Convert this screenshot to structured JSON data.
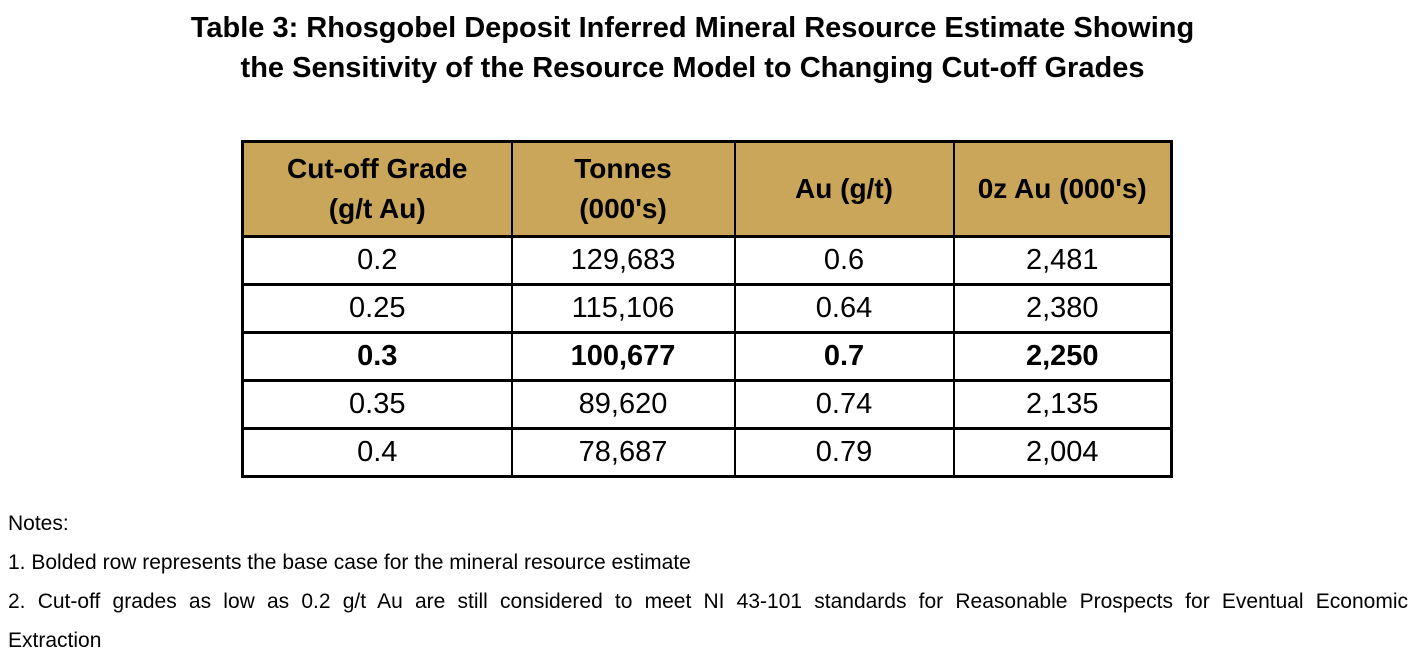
{
  "title": {
    "line1": "Table 3: Rhosgobel Deposit Inferred Mineral Resource Estimate Showing",
    "line2": "the Sensitivity of the Resource Model to Changing Cut-off Grades"
  },
  "table": {
    "header_bg": "#C9A65A",
    "border_color": "#000000",
    "headers": [
      {
        "line1": "Cut-off Grade",
        "line2": "(g/t Au)"
      },
      {
        "line1": "Tonnes",
        "line2": "(000's)"
      },
      {
        "line1": "Au (g/t)",
        "line2": ""
      },
      {
        "line1": "0z Au (000's)",
        "line2": ""
      }
    ],
    "rows": [
      {
        "cutoff": "0.2",
        "tonnes": "129,683",
        "au": "0.6",
        "oz": "2,481",
        "bold": false
      },
      {
        "cutoff": "0.25",
        "tonnes": "115,106",
        "au": "0.64",
        "oz": "2,380",
        "bold": false
      },
      {
        "cutoff": "0.3",
        "tonnes": "100,677",
        "au": "0.7",
        "oz": "2,250",
        "bold": true
      },
      {
        "cutoff": "0.35",
        "tonnes": "89,620",
        "au": "0.74",
        "oz": "2,135",
        "bold": false
      },
      {
        "cutoff": "0.4",
        "tonnes": "78,687",
        "au": "0.79",
        "oz": "2,004",
        "bold": false
      }
    ]
  },
  "notes": {
    "heading": "Notes:",
    "note1": "1. Bolded row represents the base case for the mineral resource estimate",
    "note2_line1": "2. Cut-off grades as low as 0.2 g/t Au are still considered to meet NI 43-101 standards for Reasonable Prospects for Eventual Economic",
    "note2_line2": "Extraction"
  }
}
